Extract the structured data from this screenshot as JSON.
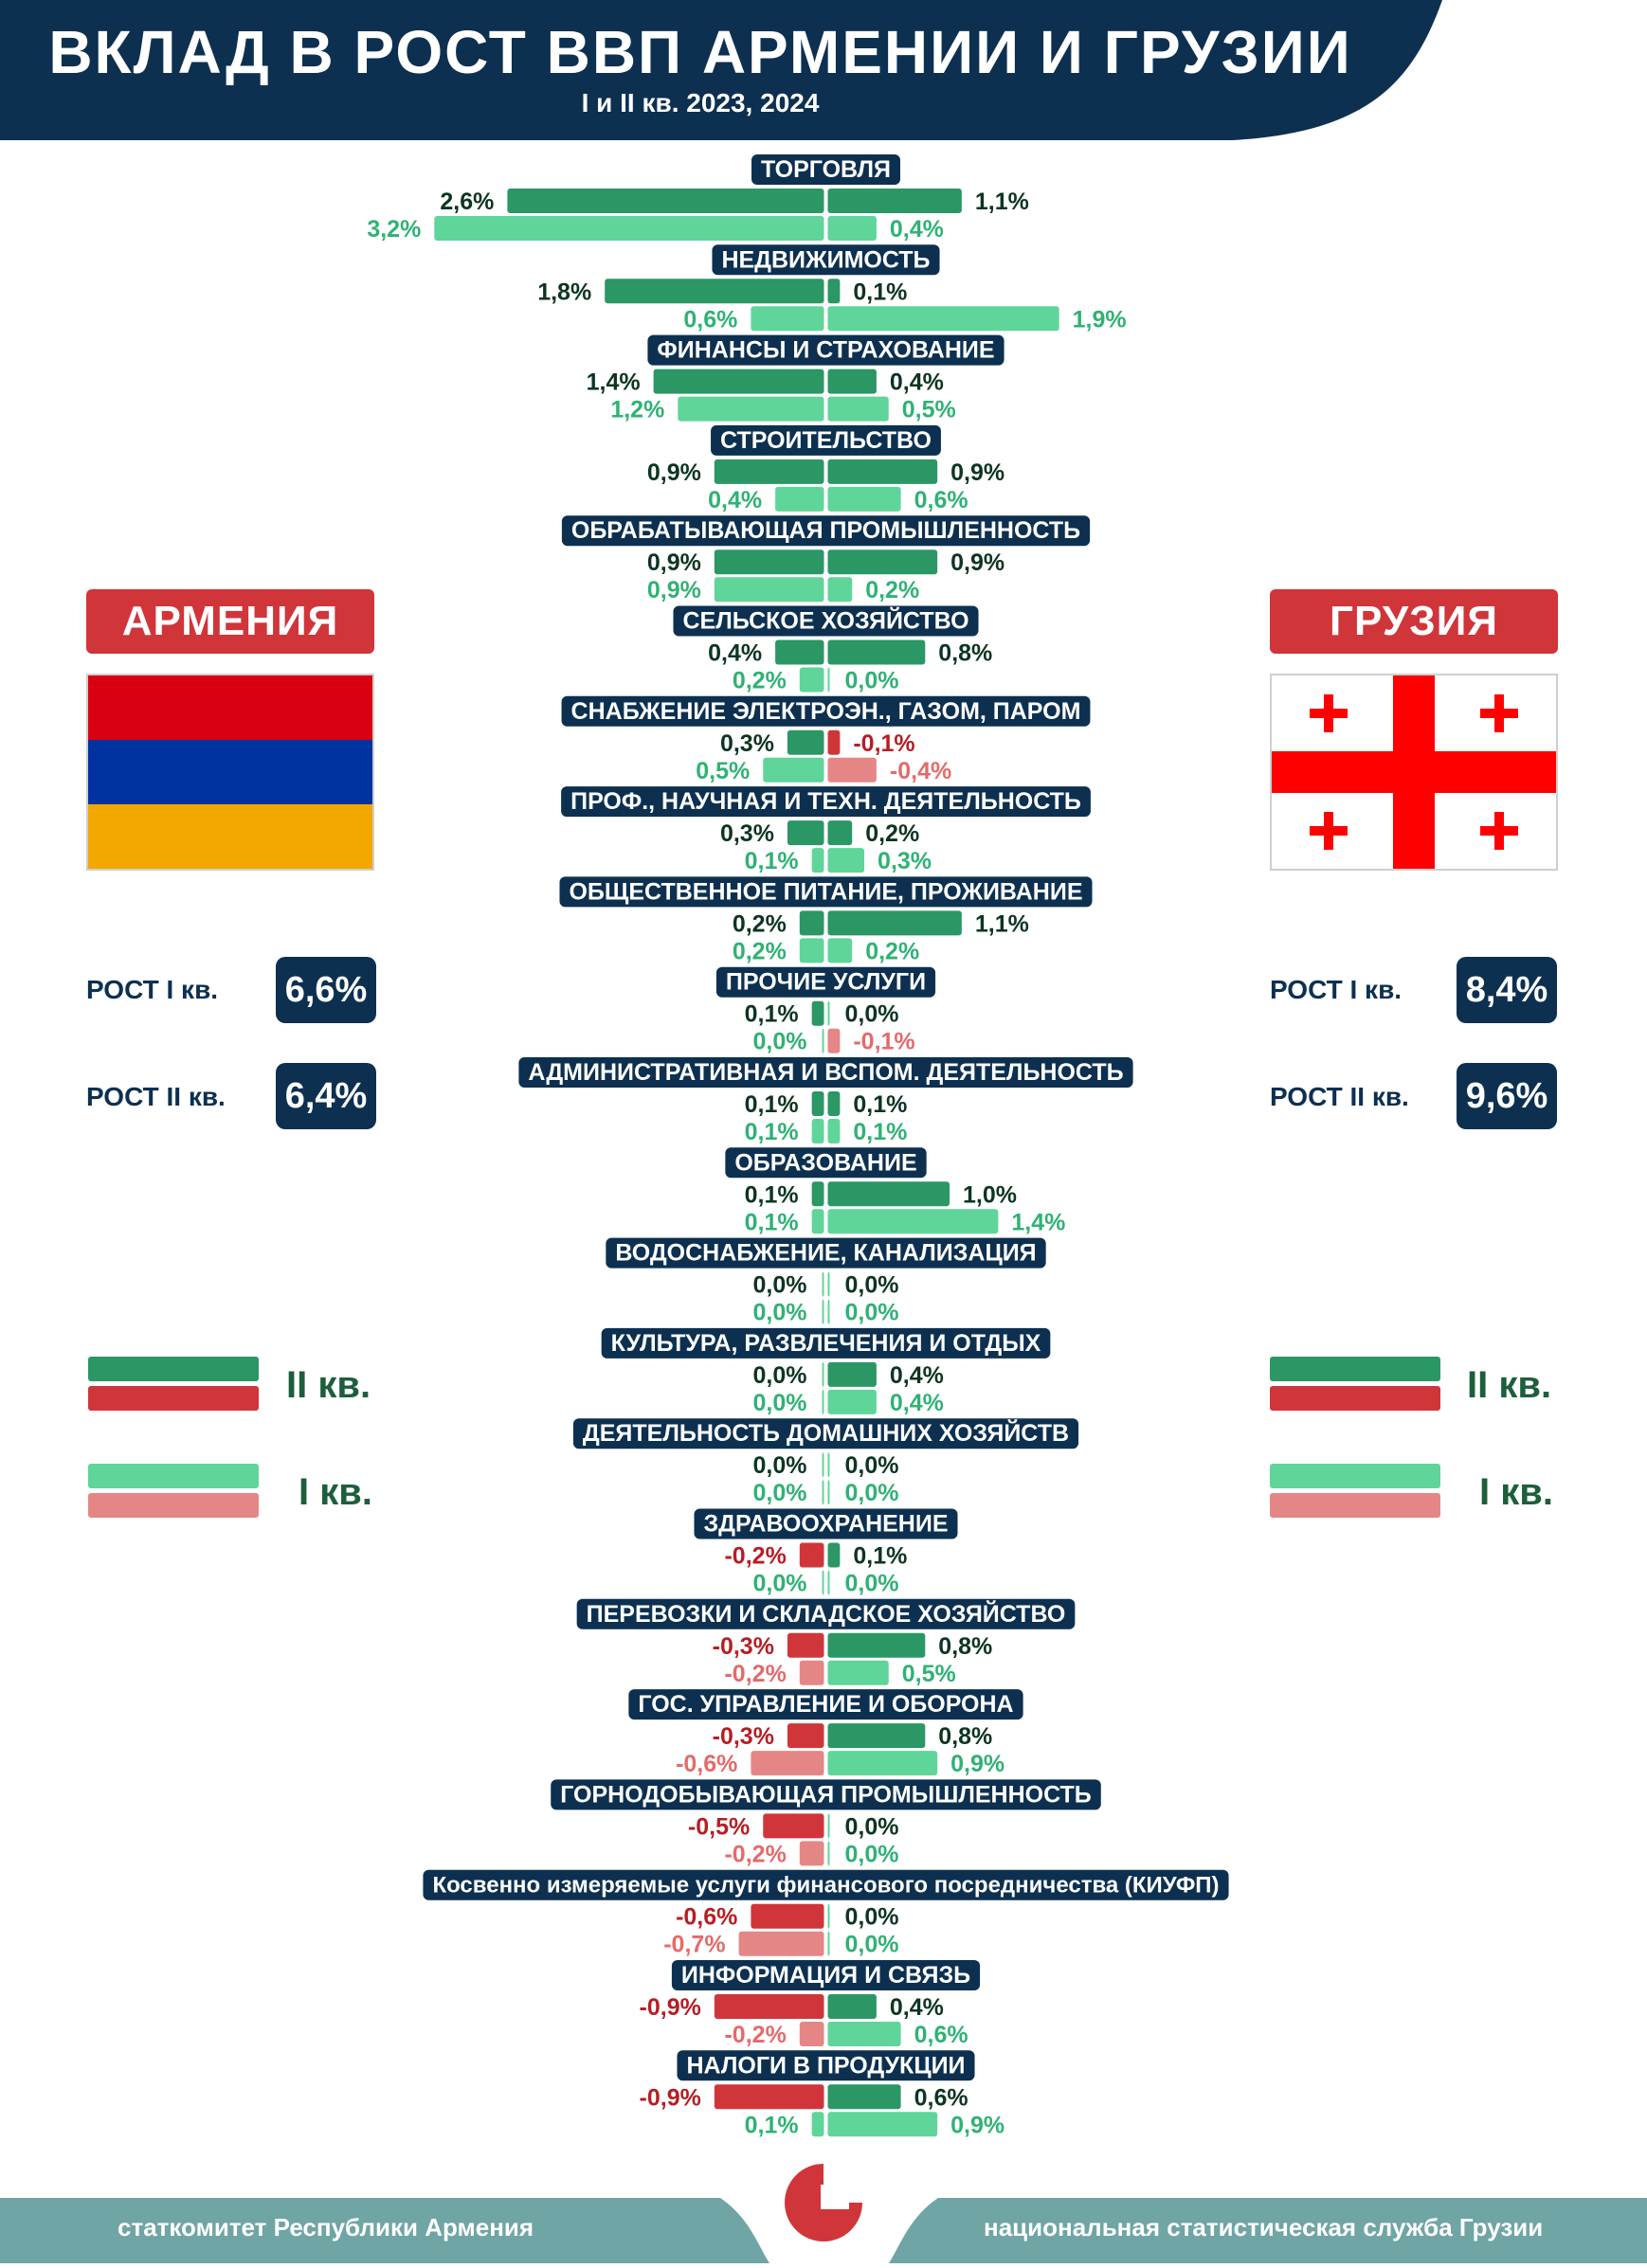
{
  "header": {
    "title": "ВКЛАД В РОСТ ВВП АРМЕНИИ И ГРУЗИИ",
    "subtitle": "I и II кв. 2023, 2024"
  },
  "colors": {
    "navy": "#0d3050",
    "q2_positive": "#2a9765",
    "q1_positive": "#5fd59a",
    "q2_negative": "#d0353a",
    "q1_negative": "#e58686",
    "q2_negative_text": "#b51e24",
    "q1_negative_text": "#e46a6a",
    "q2_positive_text": "#0d3520",
    "q1_positive_text": "#2fb274",
    "footer": "#6fa5a5"
  },
  "armenia": {
    "name": "АРМЕНИЯ",
    "flag_colors": [
      "#d90012",
      "#0033a0",
      "#f2a800"
    ],
    "growth": [
      {
        "label": "РОСТ I кв.",
        "value": "6,6%"
      },
      {
        "label": "РОСТ II кв.",
        "value": "6,4%"
      }
    ]
  },
  "georgia": {
    "name": "ГРУЗИЯ",
    "flag_colors": [
      "#ffffff",
      "#ff0000"
    ],
    "growth": [
      {
        "label": "РОСТ I кв.",
        "value": "8,4%"
      },
      {
        "label": "РОСТ II кв.",
        "value": "9,6%"
      }
    ]
  },
  "legend": {
    "q2_label": "II кв.",
    "q1_label": "I кв."
  },
  "footer": {
    "left": "статкомитет Республики Армения",
    "right": "национальная статистическая служба Грузии"
  },
  "chart_data": {
    "type": "bar",
    "orientation": "horizontal-butterfly",
    "units": "%",
    "series": [
      {
        "name": "II кв.",
        "country": "Армения"
      },
      {
        "name": "I кв.",
        "country": "Армения"
      },
      {
        "name": "II кв.",
        "country": "Грузия"
      },
      {
        "name": "I кв.",
        "country": "Грузия"
      }
    ],
    "categories": [
      {
        "label": "ТОРГОВЛЯ",
        "arm_q2": 2.6,
        "arm_q1": 3.2,
        "geo_q2": 1.1,
        "geo_q1": 0.4,
        "arm_q2_t": "2,6%",
        "arm_q1_t": "3,2%",
        "geo_q2_t": "1,1%",
        "geo_q1_t": "0,4%"
      },
      {
        "label": "НЕДВИЖИМОСТЬ",
        "arm_q2": 1.8,
        "arm_q1": 0.6,
        "geo_q2": 0.1,
        "geo_q1": 1.9,
        "arm_q2_t": "1,8%",
        "arm_q1_t": "0,6%",
        "geo_q2_t": "0,1%",
        "geo_q1_t": "1,9%"
      },
      {
        "label": "ФИНАНСЫ И СТРАХОВАНИЕ",
        "arm_q2": 1.4,
        "arm_q1": 1.2,
        "geo_q2": 0.4,
        "geo_q1": 0.5,
        "arm_q2_t": "1,4%",
        "arm_q1_t": "1,2%",
        "geo_q2_t": "0,4%",
        "geo_q1_t": "0,5%"
      },
      {
        "label": "СТРОИТЕЛЬСТВО",
        "arm_q2": 0.9,
        "arm_q1": 0.4,
        "geo_q2": 0.9,
        "geo_q1": 0.6,
        "arm_q2_t": "0,9%",
        "arm_q1_t": "0,4%",
        "geo_q2_t": "0,9%",
        "geo_q1_t": "0,6%"
      },
      {
        "label": "ОБРАБАТЫВАЮЩАЯ ПРОМЫШЛЕННОСТЬ",
        "arm_q2": 0.9,
        "arm_q1": 0.9,
        "geo_q2": 0.9,
        "geo_q1": 0.2,
        "arm_q2_t": "0,9%",
        "arm_q1_t": "0,9%",
        "geo_q2_t": "0,9%",
        "geo_q1_t": "0,2%"
      },
      {
        "label": "СЕЛЬСКОЕ ХОЗЯЙСТВО",
        "arm_q2": 0.4,
        "arm_q1": 0.2,
        "geo_q2": 0.8,
        "geo_q1": 0.0,
        "arm_q2_t": "0,4%",
        "arm_q1_t": "0,2%",
        "geo_q2_t": "0,8%",
        "geo_q1_t": "0,0%"
      },
      {
        "label": "СНАБЖЕНИЕ ЭЛЕКТРОЭН., ГАЗОМ, ПАРОМ",
        "arm_q2": 0.3,
        "arm_q1": 0.5,
        "geo_q2": -0.1,
        "geo_q1": -0.4,
        "arm_q2_t": "0,3%",
        "arm_q1_t": "0,5%",
        "geo_q2_t": "-0,1%",
        "geo_q1_t": "-0,4%"
      },
      {
        "label": "ПРОФ., НАУЧНАЯ И ТЕХН. ДЕЯТЕЛЬНОСТЬ",
        "arm_q2": 0.3,
        "arm_q1": 0.1,
        "geo_q2": 0.2,
        "geo_q1": 0.3,
        "arm_q2_t": "0,3%",
        "arm_q1_t": "0,1%",
        "geo_q2_t": "0,2%",
        "geo_q1_t": "0,3%"
      },
      {
        "label": "ОБЩЕСТВЕННОЕ ПИТАНИЕ, ПРОЖИВАНИЕ",
        "arm_q2": 0.2,
        "arm_q1": 0.2,
        "geo_q2": 1.1,
        "geo_q1": 0.2,
        "arm_q2_t": "0,2%",
        "arm_q1_t": "0,2%",
        "geo_q2_t": "1,1%",
        "geo_q1_t": "0,2%"
      },
      {
        "label": "ПРОЧИЕ УСЛУГИ",
        "arm_q2": 0.1,
        "arm_q1": 0.0,
        "geo_q2": 0.0,
        "geo_q1": -0.1,
        "arm_q2_t": "0,1%",
        "arm_q1_t": "0,0%",
        "geo_q2_t": "0,0%",
        "geo_q1_t": "-0,1%"
      },
      {
        "label": "АДМИНИСТРАТИВНАЯ И ВСПОМ. ДЕЯТЕЛЬНОСТЬ",
        "arm_q2": 0.1,
        "arm_q1": 0.1,
        "geo_q2": 0.1,
        "geo_q1": 0.1,
        "arm_q2_t": "0,1%",
        "arm_q1_t": "0,1%",
        "geo_q2_t": "0,1%",
        "geo_q1_t": "0,1%"
      },
      {
        "label": "ОБРАЗОВАНИЕ",
        "arm_q2": 0.1,
        "arm_q1": 0.1,
        "geo_q2": 1.0,
        "geo_q1": 1.4,
        "arm_q2_t": "0,1%",
        "arm_q1_t": "0,1%",
        "geo_q2_t": "1,0%",
        "geo_q1_t": "1,4%"
      },
      {
        "label": "ВОДОСНАБЖЕНИЕ, КАНАЛИЗАЦИЯ",
        "arm_q2": 0.0,
        "arm_q1": 0.0,
        "geo_q2": 0.0,
        "geo_q1": 0.0,
        "arm_q2_t": "0,0%",
        "arm_q1_t": "0,0%",
        "geo_q2_t": "0,0%",
        "geo_q1_t": "0,0%"
      },
      {
        "label": "КУЛЬТУРА, РАЗВЛЕЧЕНИЯ И ОТДЫХ",
        "arm_q2": 0.0,
        "arm_q1": 0.0,
        "geo_q2": 0.4,
        "geo_q1": 0.4,
        "arm_q2_t": "0,0%",
        "arm_q1_t": "0,0%",
        "geo_q2_t": "0,4%",
        "geo_q1_t": "0,4%"
      },
      {
        "label": "ДЕЯТЕЛЬНОСТЬ ДОМАШНИХ ХОЗЯЙСТВ",
        "arm_q2": 0.0,
        "arm_q1": 0.0,
        "geo_q2": 0.0,
        "geo_q1": 0.0,
        "arm_q2_t": "0,0%",
        "arm_q1_t": "0,0%",
        "geo_q2_t": "0,0%",
        "geo_q1_t": "0,0%"
      },
      {
        "label": "ЗДРАВООХРАНЕНИЕ",
        "arm_q2": -0.2,
        "arm_q1": 0.0,
        "geo_q2": 0.1,
        "geo_q1": 0.0,
        "arm_q2_t": "-0,2%",
        "arm_q1_t": "0,0%",
        "geo_q2_t": "0,1%",
        "geo_q1_t": "0,0%"
      },
      {
        "label": "ПЕРЕВОЗКИ И СКЛАДСКОЕ ХОЗЯЙСТВО",
        "arm_q2": -0.3,
        "arm_q1": -0.2,
        "geo_q2": 0.8,
        "geo_q1": 0.5,
        "arm_q2_t": "-0,3%",
        "arm_q1_t": "-0,2%",
        "geo_q2_t": "0,8%",
        "geo_q1_t": "0,5%"
      },
      {
        "label": "ГОС. УПРАВЛЕНИЕ И ОБОРОНА",
        "arm_q2": -0.3,
        "arm_q1": -0.6,
        "geo_q2": 0.8,
        "geo_q1": 0.9,
        "arm_q2_t": "-0,3%",
        "arm_q1_t": "-0,6%",
        "geo_q2_t": "0,8%",
        "geo_q1_t": "0,9%"
      },
      {
        "label": "ГОРНОДОБЫВАЮЩАЯ ПРОМЫШЛЕННОСТЬ",
        "arm_q2": -0.5,
        "arm_q1": -0.2,
        "geo_q2": 0.0,
        "geo_q1": 0.0,
        "arm_q2_t": "-0,5%",
        "arm_q1_t": "-0,2%",
        "geo_q2_t": "0,0%",
        "geo_q1_t": "0,0%"
      },
      {
        "label": "Косвенно измеряемые услуги финансового посредничества (КИУФП)",
        "arm_q2": -0.6,
        "arm_q1": -0.7,
        "geo_q2": 0.0,
        "geo_q1": 0.0,
        "arm_q2_t": "-0,6%",
        "arm_q1_t": "-0,7%",
        "geo_q2_t": "0,0%",
        "geo_q1_t": "0,0%"
      },
      {
        "label": "ИНФОРМАЦИЯ И СВЯЗЬ",
        "arm_q2": -0.9,
        "arm_q1": -0.2,
        "geo_q2": 0.4,
        "geo_q1": 0.6,
        "arm_q2_t": "-0,9%",
        "arm_q1_t": "-0,2%",
        "geo_q2_t": "0,4%",
        "geo_q1_t": "0,6%"
      },
      {
        "label": "НАЛОГИ В ПРОДУКЦИИ",
        "arm_q2": -0.9,
        "arm_q1": 0.1,
        "geo_q2": 0.6,
        "geo_q1": 0.9,
        "arm_q2_t": "-0,9%",
        "arm_q1_t": "0,1%",
        "geo_q2_t": "0,6%",
        "geo_q1_t": "0,9%"
      }
    ]
  }
}
